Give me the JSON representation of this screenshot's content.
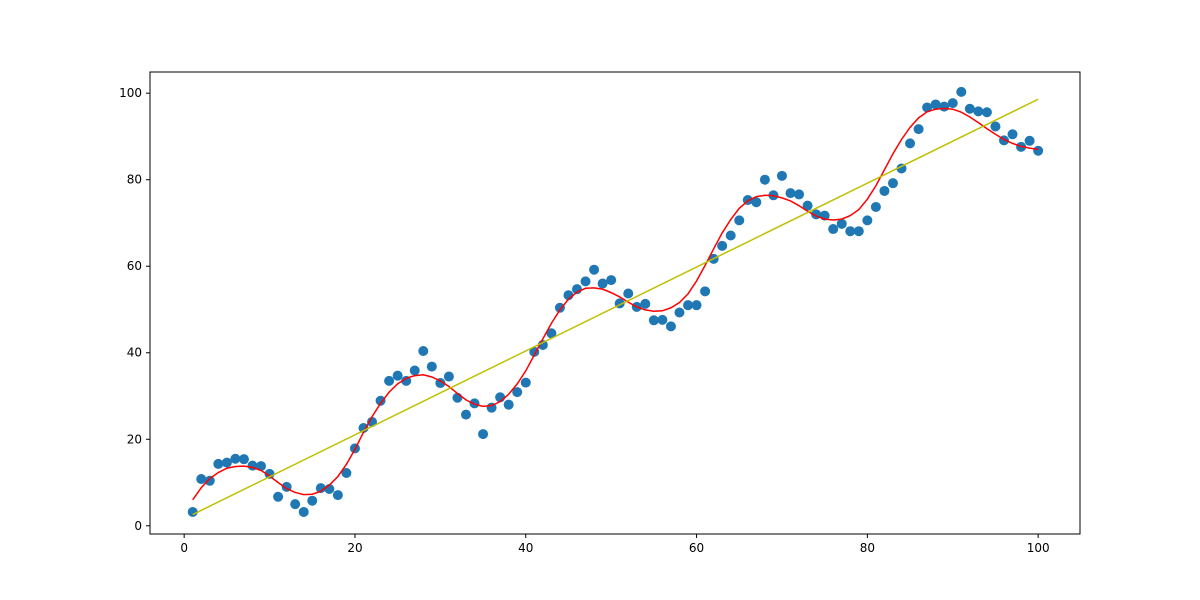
{
  "chart_data": {
    "type": "scatter",
    "title": "",
    "xlabel": "",
    "ylabel": "",
    "xlim": [
      -4.0,
      104.9
    ],
    "ylim": [
      -1.9,
      104.9
    ],
    "xticks": [
      0,
      20,
      40,
      60,
      80,
      100
    ],
    "yticks": [
      0,
      20,
      40,
      60,
      80,
      100
    ],
    "grid": false,
    "colors": {
      "points": "#1f77b4",
      "curve": "#ff0000",
      "trend": "#bfbf00",
      "axes": "#000000"
    },
    "series": [
      {
        "kind": "scatter",
        "x": [
          1,
          2,
          3,
          4,
          5,
          6,
          7,
          8,
          9,
          10,
          11,
          12,
          13,
          14,
          15,
          16,
          17,
          18,
          19,
          20,
          21,
          22,
          23,
          24,
          25,
          26,
          27,
          28,
          29,
          30,
          31,
          32,
          33,
          34,
          35,
          36,
          37,
          38,
          39,
          40,
          41,
          42,
          43,
          44,
          45,
          46,
          47,
          48,
          49,
          50,
          51,
          52,
          53,
          54,
          55,
          56,
          57,
          58,
          59,
          60,
          61,
          62,
          63,
          64,
          65,
          66,
          67,
          68,
          69,
          70,
          71,
          72,
          73,
          74,
          75,
          76,
          77,
          78,
          79,
          80,
          81,
          82,
          83,
          84,
          85,
          86,
          87,
          88,
          89,
          90,
          91,
          92,
          93,
          94,
          95,
          96,
          97,
          98,
          99,
          100
        ],
        "y": [
          3.2,
          10.8,
          10.4,
          14.3,
          14.6,
          15.5,
          15.4,
          13.9,
          13.8,
          12.0,
          6.7,
          9.0,
          5.0,
          3.2,
          5.8,
          8.7,
          8.5,
          7.1,
          12.2,
          17.9,
          22.6,
          24.0,
          28.9,
          33.5,
          34.7,
          33.5,
          35.9,
          40.4,
          36.8,
          33.0,
          34.5,
          29.6,
          25.7,
          28.3,
          21.2,
          27.3,
          29.7,
          28.0,
          30.9,
          33.1,
          40.2,
          41.8,
          44.5,
          50.4,
          53.3,
          54.7,
          56.5,
          59.2,
          56.0,
          56.8,
          51.4,
          53.7,
          50.6,
          51.3,
          47.5,
          47.6,
          46.1,
          49.3,
          51.0,
          51.0,
          54.2,
          61.7,
          64.7,
          67.1,
          70.6,
          75.3,
          74.8,
          80.0,
          76.4,
          80.9,
          76.9,
          76.6,
          74.0,
          72.0,
          71.7,
          68.6,
          69.8,
          68.1,
          68.1,
          70.6,
          73.7,
          77.4,
          79.2,
          82.6,
          88.4,
          91.7,
          96.7,
          97.4,
          96.9,
          97.7,
          100.3,
          96.4,
          95.8,
          95.6,
          92.3,
          89.1,
          90.5,
          87.6,
          89.0,
          86.7
        ]
      },
      {
        "kind": "line",
        "x": [
          1,
          2,
          3,
          4,
          5,
          6,
          7,
          8,
          9,
          10,
          11,
          12,
          13,
          14,
          15,
          16,
          17,
          18,
          19,
          20,
          21,
          22,
          23,
          24,
          25,
          26,
          27,
          28,
          29,
          30,
          31,
          32,
          33,
          34,
          35,
          36,
          37,
          38,
          39,
          40,
          41,
          42,
          43,
          44,
          45,
          46,
          47,
          48,
          49,
          50,
          51,
          52,
          53,
          54,
          55,
          56,
          57,
          58,
          59,
          60,
          61,
          62,
          63,
          64,
          65,
          66,
          67,
          68,
          69,
          70,
          71,
          72,
          73,
          74,
          75,
          76,
          77,
          78,
          79,
          80,
          81,
          82,
          83,
          84,
          85,
          86,
          87,
          88,
          89,
          90,
          91,
          92,
          93,
          94,
          95,
          96,
          97,
          98,
          99,
          100
        ],
        "y": [
          6.0,
          8.8,
          10.9,
          12.3,
          13.3,
          13.7,
          13.8,
          13.5,
          12.8,
          11.5,
          10.0,
          8.6,
          7.7,
          7.2,
          7.3,
          8.0,
          9.4,
          11.4,
          14.2,
          17.7,
          21.6,
          25.2,
          28.3,
          30.9,
          32.8,
          34.1,
          34.7,
          34.9,
          34.4,
          33.5,
          32.2,
          30.6,
          29.1,
          28.1,
          27.6,
          27.8,
          28.7,
          30.4,
          32.8,
          35.8,
          39.5,
          43.2,
          46.8,
          49.9,
          52.4,
          54.0,
          54.9,
          55.0,
          54.7,
          53.9,
          52.9,
          51.7,
          50.6,
          49.9,
          49.6,
          49.7,
          50.4,
          51.6,
          53.6,
          56.6,
          60.2,
          64.0,
          67.7,
          70.8,
          73.4,
          75.1,
          76.1,
          76.4,
          76.3,
          75.8,
          75.1,
          74.0,
          72.7,
          71.6,
          70.9,
          70.7,
          70.9,
          71.7,
          73.1,
          75.5,
          78.6,
          82.3,
          86.0,
          89.3,
          92.1,
          94.3,
          95.7,
          96.3,
          96.5,
          96.3,
          95.6,
          94.5,
          93.2,
          91.8,
          90.5,
          89.3,
          88.4,
          87.7,
          87.3,
          87.0
        ]
      },
      {
        "kind": "line",
        "x": [
          1,
          100
        ],
        "y": [
          2.6,
          98.6
        ]
      }
    ]
  }
}
